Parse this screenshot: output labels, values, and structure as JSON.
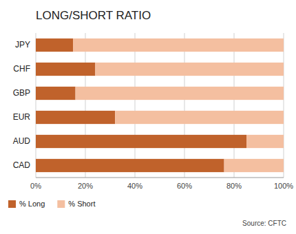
{
  "chart_data": {
    "type": "bar",
    "orientation": "horizontal",
    "stacked": true,
    "title": "LONG/SHORT RATIO",
    "categories": [
      "JPY",
      "CHF",
      "GBP",
      "EUR",
      "AUD",
      "CAD"
    ],
    "series": [
      {
        "name": "% Long",
        "color": "#C0622B",
        "values": [
          15,
          24,
          16,
          32,
          85,
          76
        ]
      },
      {
        "name": "% Short",
        "color": "#F4BFA0",
        "values": [
          85,
          76,
          84,
          68,
          15,
          24
        ]
      }
    ],
    "xlim": [
      0,
      100
    ],
    "xticks": [
      {
        "value": 0,
        "label": "0%"
      },
      {
        "value": 20,
        "label": "20%"
      },
      {
        "value": 40,
        "label": "40%"
      },
      {
        "value": 60,
        "label": "60%"
      },
      {
        "value": 80,
        "label": "80%"
      },
      {
        "value": 100,
        "label": "100%"
      }
    ],
    "grid": true,
    "legend": "lower left",
    "annotations": [
      "Source: CFTC"
    ]
  }
}
